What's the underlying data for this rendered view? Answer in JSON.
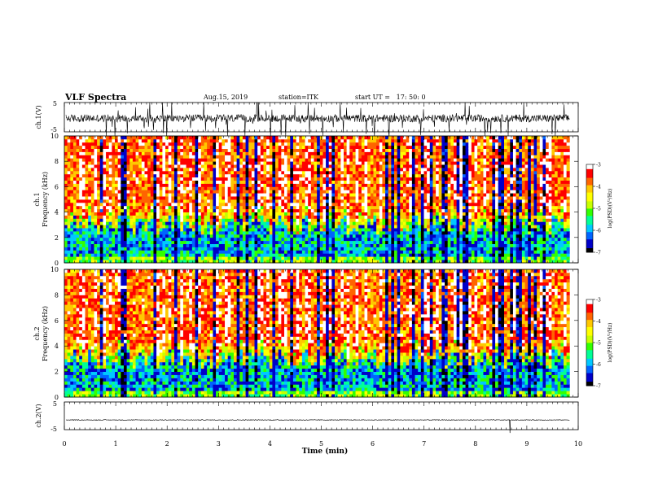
{
  "header": {
    "title": "VLF Spectra",
    "date": "Aug.15, 2019",
    "station": "station=ITK",
    "start": "start UT =   17: 50: 0"
  },
  "chart_data": [
    {
      "type": "line",
      "name": "ch1-waveform",
      "ylabel": "ch.1(V)",
      "ylim": [
        -5,
        5
      ],
      "yticks": [
        "5",
        "-5"
      ],
      "xlim": [
        0,
        10
      ],
      "data_end_min": 9.83,
      "baseline": -0.4,
      "noise_amplitude": 1.3
    },
    {
      "type": "heatmap",
      "name": "ch1-spectrogram",
      "ylabel_top": "ch.1",
      "ylabel": "Frequency (kHz)",
      "ylim": [
        0,
        10
      ],
      "yticks": [
        "0",
        "2",
        "4",
        "6",
        "8",
        "10"
      ],
      "xlim": [
        0,
        10
      ],
      "data_end_min": 9.83
    },
    {
      "type": "heatmap",
      "name": "ch2-spectrogram",
      "ylabel_top": "ch.2",
      "ylabel": "Frequency (kHz)",
      "ylim": [
        0,
        10
      ],
      "yticks": [
        "0",
        "2",
        "4",
        "6",
        "8",
        "10"
      ],
      "xlim": [
        0,
        10
      ],
      "data_end_min": 9.83
    },
    {
      "type": "line",
      "name": "ch2-waveform",
      "ylabel": "ch.2(V)",
      "ylim": [
        -5,
        5
      ],
      "yticks": [
        "5",
        "-5"
      ],
      "xlim": [
        0,
        10
      ],
      "data_end_min": 9.83,
      "baseline": -1.5,
      "noise_amplitude": 0.12
    }
  ],
  "xaxis": {
    "label": "Time (min)",
    "ticks": [
      "0",
      "1",
      "2",
      "3",
      "4",
      "5",
      "6",
      "7",
      "8",
      "9",
      "10"
    ]
  },
  "colorbar": {
    "label": "log(PSD)(V²/Hz)",
    "ticks": [
      "-3",
      "-4",
      "-5",
      "-6",
      "-7"
    ],
    "range": [
      -7,
      -3
    ],
    "colors": [
      "#000000",
      "#0000c8",
      "#0064ff",
      "#00c8ff",
      "#00ff96",
      "#32ff00",
      "#c8ff00",
      "#ffff00",
      "#ffc800",
      "#ff6400",
      "#ff0000",
      "#ffffff"
    ]
  }
}
